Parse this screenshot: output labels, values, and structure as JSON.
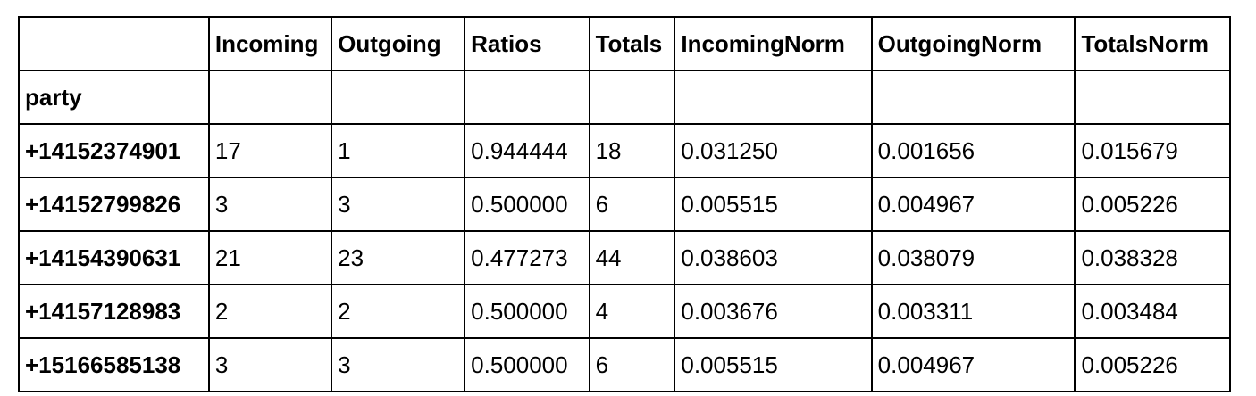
{
  "chart_data": {
    "type": "table",
    "columns": [
      "",
      "Incoming",
      "Outgoing",
      "Ratios",
      "Totals",
      "IncomingNorm",
      "OutgoingNorm",
      "TotalsNorm"
    ],
    "index_name": "party",
    "rows": [
      [
        "+14152374901",
        "17",
        "1",
        "0.944444",
        "18",
        "0.031250",
        "0.001656",
        "0.015679"
      ],
      [
        "+14152799826",
        "3",
        "3",
        "0.500000",
        "6",
        "0.005515",
        "0.004967",
        "0.005226"
      ],
      [
        "+14154390631",
        "21",
        "23",
        "0.477273",
        "44",
        "0.038603",
        "0.038079",
        "0.038328"
      ],
      [
        "+14157128983",
        "2",
        "2",
        "0.500000",
        "4",
        "0.003676",
        "0.003311",
        "0.003484"
      ],
      [
        "+15166585138",
        "3",
        "3",
        "0.500000",
        "6",
        "0.005515",
        "0.004967",
        "0.005226"
      ]
    ]
  }
}
